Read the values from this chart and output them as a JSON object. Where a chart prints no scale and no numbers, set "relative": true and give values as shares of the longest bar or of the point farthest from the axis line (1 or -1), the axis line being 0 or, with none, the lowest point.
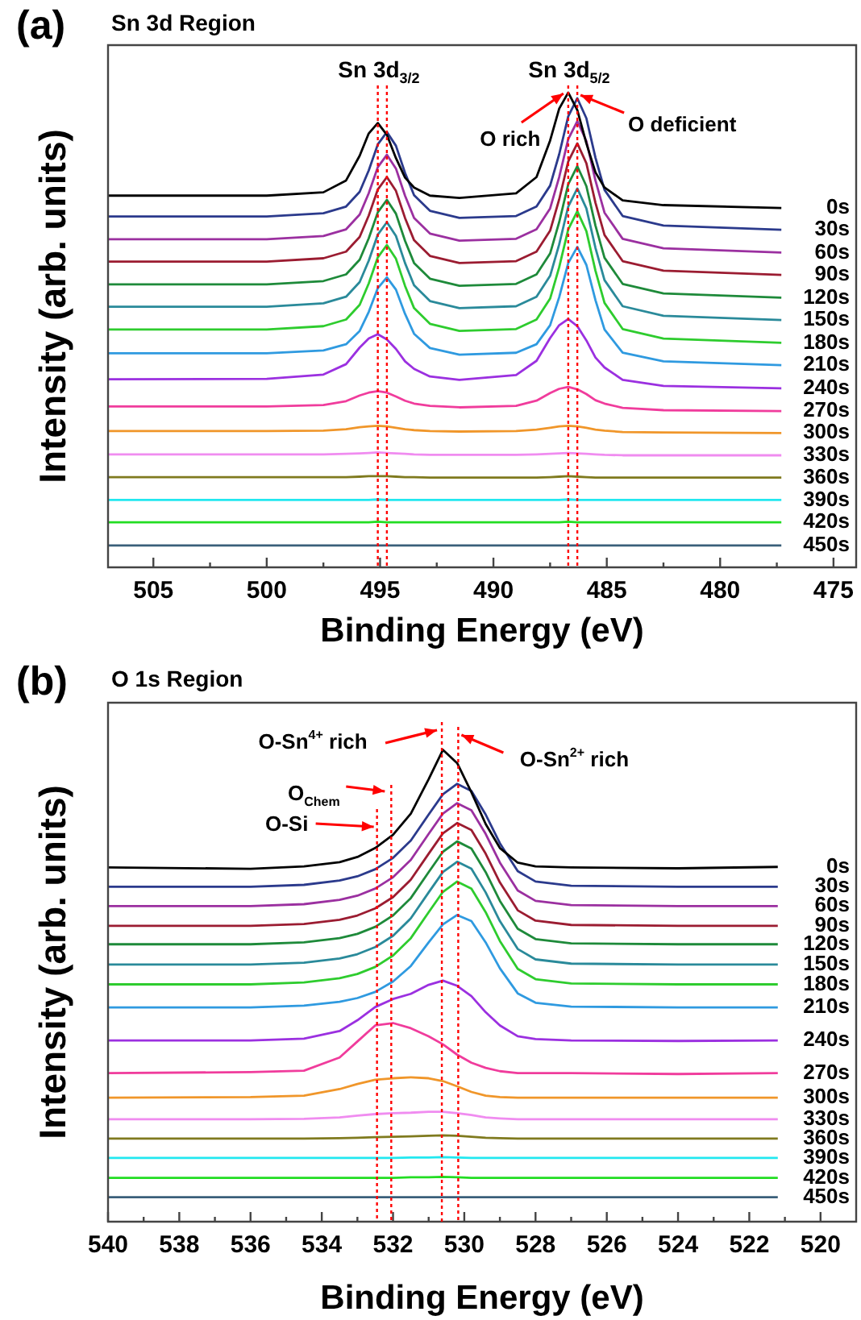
{
  "chart_data": [
    {
      "type": "line",
      "title": "Sn 3d Region",
      "xlabel": "Binding Energy (eV)",
      "ylabel": "Intensity (arb. units)",
      "relative": true,
      "legend": false,
      "grid": false,
      "annotations": [
        "(a)",
        "Sn 3d$_{3/2}$",
        "Sn 3d$_{5/2}$"
      ],
      "xlim": [
        507,
        474
      ],
      "xticks": [
        505,
        {
          "value": 502.5,
          "label": null
        },
        500,
        {
          "value": 497.5,
          "label": null
        },
        495,
        {
          "value": 492.5,
          "label": null
        },
        490,
        {
          "value": 487.5,
          "label": null
        },
        485,
        {
          "value": 482.5,
          "label": null
        },
        480,
        {
          "value": 477.5,
          "label": null
        },
        475
      ],
      "ref_lines": [
        {
          "axis": "x",
          "value": 495.1,
          "color": "#ff0000",
          "line_style": "dotted"
        },
        {
          "axis": "x",
          "value": 494.7,
          "color": "#ff0000",
          "line_style": "dotted"
        },
        {
          "axis": "x",
          "value": 486.7,
          "label": "O rich",
          "color": "#ff0000",
          "line_style": "dotted"
        },
        {
          "axis": "x",
          "value": 486.3,
          "label": "O deficient",
          "color": "#ff0000",
          "line_style": "dotted"
        }
      ],
      "x": [
        507,
        500,
        497.5,
        496.5,
        495.9,
        495.5,
        495.1,
        494.7,
        494.3,
        493.9,
        493.5,
        492.8,
        491.5,
        489,
        488.1,
        487.5,
        487.1,
        486.7,
        486.3,
        485.9,
        485.5,
        485.1,
        484.3,
        482.5,
        477.3
      ],
      "series": [
        {
          "name": "0s",
          "color": "#000000",
          "values": [
            0.783,
            0.783,
            0.79,
            0.815,
            0.867,
            0.914,
            0.936,
            0.911,
            0.862,
            0.821,
            0.8,
            0.783,
            0.778,
            0.788,
            0.822,
            0.899,
            0.966,
            1.0,
            0.963,
            0.893,
            0.832,
            0.8,
            0.773,
            0.763,
            0.757
          ]
        },
        {
          "name": "30s",
          "color": "#2b3a8c",
          "values": [
            0.739,
            0.739,
            0.746,
            0.76,
            0.791,
            0.836,
            0.891,
            0.917,
            0.888,
            0.831,
            0.784,
            0.751,
            0.736,
            0.74,
            0.76,
            0.804,
            0.87,
            0.95,
            0.988,
            0.946,
            0.863,
            0.795,
            0.74,
            0.72,
            0.711
          ]
        },
        {
          "name": "60s",
          "color": "#9b30a0",
          "values": [
            0.691,
            0.691,
            0.698,
            0.712,
            0.743,
            0.788,
            0.843,
            0.869,
            0.84,
            0.783,
            0.736,
            0.703,
            0.688,
            0.692,
            0.712,
            0.756,
            0.822,
            0.902,
            0.94,
            0.898,
            0.815,
            0.747,
            0.692,
            0.672,
            0.663
          ]
        },
        {
          "name": "90s",
          "color": "#9b1c31",
          "values": [
            0.644,
            0.644,
            0.651,
            0.665,
            0.696,
            0.741,
            0.796,
            0.822,
            0.793,
            0.736,
            0.689,
            0.656,
            0.641,
            0.645,
            0.665,
            0.709,
            0.775,
            0.855,
            0.893,
            0.851,
            0.768,
            0.7,
            0.645,
            0.625,
            0.616
          ]
        },
        {
          "name": "120s",
          "color": "#1e8a3a",
          "values": [
            0.596,
            0.596,
            0.603,
            0.617,
            0.648,
            0.693,
            0.748,
            0.774,
            0.745,
            0.688,
            0.641,
            0.608,
            0.593,
            0.597,
            0.617,
            0.661,
            0.727,
            0.807,
            0.845,
            0.803,
            0.72,
            0.652,
            0.597,
            0.577,
            0.568
          ]
        },
        {
          "name": "150s",
          "color": "#2a8a9a",
          "values": [
            0.549,
            0.549,
            0.556,
            0.57,
            0.601,
            0.646,
            0.701,
            0.727,
            0.698,
            0.641,
            0.594,
            0.561,
            0.546,
            0.55,
            0.57,
            0.614,
            0.68,
            0.76,
            0.798,
            0.756,
            0.673,
            0.605,
            0.55,
            0.53,
            0.521
          ]
        },
        {
          "name": "180s",
          "color": "#2ecc2e",
          "values": [
            0.501,
            0.501,
            0.508,
            0.522,
            0.553,
            0.598,
            0.653,
            0.679,
            0.65,
            0.593,
            0.546,
            0.513,
            0.498,
            0.502,
            0.522,
            0.566,
            0.632,
            0.712,
            0.75,
            0.708,
            0.625,
            0.557,
            0.502,
            0.482,
            0.473
          ]
        },
        {
          "name": "210s",
          "color": "#2f9ae0",
          "values": [
            0.451,
            0.451,
            0.457,
            0.47,
            0.498,
            0.538,
            0.588,
            0.611,
            0.585,
            0.534,
            0.492,
            0.462,
            0.448,
            0.452,
            0.47,
            0.51,
            0.569,
            0.641,
            0.675,
            0.637,
            0.563,
            0.501,
            0.452,
            0.434,
            0.426
          ]
        },
        {
          "name": "240s",
          "color": "#9b30e0",
          "values": [
            0.396,
            0.397,
            0.406,
            0.428,
            0.463,
            0.482,
            0.491,
            0.48,
            0.46,
            0.434,
            0.418,
            0.402,
            0.395,
            0.405,
            0.435,
            0.483,
            0.51,
            0.523,
            0.508,
            0.478,
            0.442,
            0.421,
            0.395,
            0.382,
            0.377
          ]
        },
        {
          "name": "270s",
          "color": "#f03c9c",
          "values": [
            0.339,
            0.339,
            0.342,
            0.35,
            0.362,
            0.368,
            0.371,
            0.368,
            0.36,
            0.351,
            0.345,
            0.34,
            0.337,
            0.34,
            0.351,
            0.367,
            0.376,
            0.38,
            0.375,
            0.365,
            0.352,
            0.345,
            0.336,
            0.331,
            0.329
          ]
        },
        {
          "name": "300s",
          "color": "#f0962a",
          "values": [
            0.287,
            0.287,
            0.288,
            0.291,
            0.295,
            0.297,
            0.298,
            0.297,
            0.294,
            0.291,
            0.289,
            0.287,
            0.286,
            0.287,
            0.29,
            0.294,
            0.297,
            0.298,
            0.297,
            0.294,
            0.29,
            0.288,
            0.285,
            0.284,
            0.283
          ]
        },
        {
          "name": "330s",
          "color": "#f08cf0",
          "values": [
            0.238,
            0.238,
            0.238,
            0.239,
            0.24,
            0.241,
            0.242,
            0.241,
            0.24,
            0.239,
            0.238,
            0.237,
            0.237,
            0.237,
            0.238,
            0.239,
            0.24,
            0.241,
            0.24,
            0.239,
            0.238,
            0.237,
            0.236,
            0.236,
            0.236
          ]
        },
        {
          "name": "360s",
          "color": "#7f7a1e",
          "values": [
            0.19,
            0.19,
            0.19,
            0.19,
            0.191,
            0.192,
            0.192,
            0.192,
            0.191,
            0.19,
            0.19,
            0.189,
            0.189,
            0.189,
            0.189,
            0.19,
            0.191,
            0.192,
            0.191,
            0.19,
            0.189,
            0.189,
            0.189,
            0.189,
            0.189
          ]
        },
        {
          "name": "390s",
          "color": "#22e8f0",
          "values": [
            0.142,
            0.142,
            0.142,
            0.142,
            0.142,
            0.142,
            0.143,
            0.142,
            0.142,
            0.142,
            0.142,
            0.142,
            0.142,
            0.142,
            0.142,
            0.142,
            0.142,
            0.143,
            0.142,
            0.142,
            0.142,
            0.142,
            0.142,
            0.142,
            0.142
          ]
        },
        {
          "name": "420s",
          "color": "#22dd22",
          "values": [
            0.095,
            0.095,
            0.095,
            0.095,
            0.095,
            0.095,
            0.096,
            0.095,
            0.095,
            0.095,
            0.095,
            0.095,
            0.095,
            0.095,
            0.095,
            0.095,
            0.095,
            0.096,
            0.095,
            0.095,
            0.095,
            0.095,
            0.095,
            0.095,
            0.095
          ]
        },
        {
          "name": "450s",
          "color": "#3a5f7a",
          "values": [
            0.046,
            0.046,
            0.046,
            0.046,
            0.046,
            0.046,
            0.046,
            0.046,
            0.046,
            0.046,
            0.046,
            0.046,
            0.046,
            0.046,
            0.046,
            0.046,
            0.046,
            0.046,
            0.046,
            0.046,
            0.046,
            0.046,
            0.046,
            0.046,
            0.046
          ]
        }
      ]
    },
    {
      "type": "line",
      "title": "O 1s Region",
      "xlabel": "Binding Energy (eV)",
      "ylabel": "Intensity (arb. units)",
      "relative": true,
      "legend": false,
      "grid": false,
      "annotations": [
        "(b)"
      ],
      "xlim": [
        540,
        519
      ],
      "xticks": [
        540,
        {
          "value": 539,
          "label": null
        },
        538,
        {
          "value": 537,
          "label": null
        },
        536,
        {
          "value": 535,
          "label": null
        },
        534,
        {
          "value": 533,
          "label": null
        },
        532,
        {
          "value": 531,
          "label": null
        },
        530,
        {
          "value": 529,
          "label": null
        },
        528,
        {
          "value": 527,
          "label": null
        },
        526,
        {
          "value": 525,
          "label": null
        },
        524,
        {
          "value": 523,
          "label": null
        },
        522,
        {
          "value": 521,
          "label": null
        },
        520
      ],
      "ref_lines": [
        {
          "axis": "x",
          "value": 532.45,
          "label": "O-Si",
          "color": "#ff0000",
          "line_style": "dotted"
        },
        {
          "axis": "x",
          "value": 532.05,
          "label": "O$_{Chem}$",
          "color": "#ff0000",
          "line_style": "dotted"
        },
        {
          "axis": "x",
          "value": 530.63,
          "label": "O-Sn$^{4+}$ rich",
          "color": "#ff0000",
          "line_style": "dotted"
        },
        {
          "axis": "x",
          "value": 530.17,
          "label": "O-Sn$^{2+}$ rich",
          "color": "#ff0000",
          "line_style": "dotted"
        }
      ],
      "x": [
        540,
        536,
        534.5,
        533.5,
        533,
        532.5,
        532,
        531.5,
        531,
        530.6,
        530.2,
        529.8,
        529.4,
        529,
        528.5,
        528,
        527,
        524,
        521.2
      ],
      "series": [
        {
          "name": "0s",
          "color": "#000000",
          "values": [
            0.751,
            0.748,
            0.753,
            0.762,
            0.773,
            0.792,
            0.82,
            0.865,
            0.938,
            1.0,
            0.972,
            0.91,
            0.843,
            0.792,
            0.761,
            0.753,
            0.751,
            0.749,
            0.752
          ]
        },
        {
          "name": "30s",
          "color": "#2b3a8c",
          "values": [
            0.71,
            0.71,
            0.714,
            0.723,
            0.732,
            0.747,
            0.771,
            0.808,
            0.863,
            0.906,
            0.928,
            0.913,
            0.863,
            0.802,
            0.743,
            0.721,
            0.712,
            0.71,
            0.71
          ]
        },
        {
          "name": "60s",
          "color": "#9b30a0",
          "values": [
            0.669,
            0.669,
            0.673,
            0.682,
            0.691,
            0.706,
            0.73,
            0.767,
            0.822,
            0.865,
            0.887,
            0.872,
            0.822,
            0.761,
            0.702,
            0.68,
            0.671,
            0.669,
            0.669
          ]
        },
        {
          "name": "90s",
          "color": "#9b1c31",
          "values": [
            0.627,
            0.627,
            0.631,
            0.64,
            0.649,
            0.664,
            0.688,
            0.725,
            0.78,
            0.823,
            0.845,
            0.83,
            0.78,
            0.719,
            0.66,
            0.638,
            0.629,
            0.627,
            0.627
          ]
        },
        {
          "name": "120s",
          "color": "#1e8a3a",
          "values": [
            0.588,
            0.588,
            0.592,
            0.601,
            0.61,
            0.625,
            0.649,
            0.686,
            0.741,
            0.784,
            0.806,
            0.791,
            0.741,
            0.68,
            0.621,
            0.599,
            0.59,
            0.588,
            0.588
          ]
        },
        {
          "name": "150s",
          "color": "#2a8a9a",
          "values": [
            0.545,
            0.545,
            0.549,
            0.558,
            0.567,
            0.582,
            0.606,
            0.643,
            0.698,
            0.741,
            0.763,
            0.748,
            0.698,
            0.637,
            0.578,
            0.556,
            0.547,
            0.545,
            0.545
          ]
        },
        {
          "name": "180s",
          "color": "#2ecc2e",
          "values": [
            0.503,
            0.503,
            0.507,
            0.516,
            0.525,
            0.54,
            0.564,
            0.601,
            0.656,
            0.699,
            0.721,
            0.706,
            0.656,
            0.595,
            0.536,
            0.514,
            0.505,
            0.503,
            0.503
          ]
        },
        {
          "name": "210s",
          "color": "#2f9ae0",
          "values": [
            0.454,
            0.454,
            0.458,
            0.466,
            0.474,
            0.487,
            0.509,
            0.542,
            0.592,
            0.63,
            0.65,
            0.637,
            0.592,
            0.537,
            0.484,
            0.464,
            0.456,
            0.454,
            0.454
          ]
        },
        {
          "name": "240s",
          "color": "#9b30e0",
          "values": [
            0.384,
            0.384,
            0.388,
            0.404,
            0.427,
            0.455,
            0.472,
            0.483,
            0.502,
            0.511,
            0.5,
            0.478,
            0.444,
            0.416,
            0.393,
            0.387,
            0.384,
            0.383,
            0.384
          ]
        },
        {
          "name": "270s",
          "color": "#f03c9c",
          "values": [
            0.315,
            0.317,
            0.32,
            0.348,
            0.382,
            0.416,
            0.421,
            0.41,
            0.393,
            0.376,
            0.354,
            0.337,
            0.326,
            0.319,
            0.315,
            0.315,
            0.315,
            0.313,
            0.315
          ]
        },
        {
          "name": "300s",
          "color": "#f0962a",
          "values": [
            0.263,
            0.264,
            0.267,
            0.281,
            0.292,
            0.301,
            0.304,
            0.306,
            0.304,
            0.298,
            0.287,
            0.275,
            0.267,
            0.264,
            0.263,
            0.263,
            0.263,
            0.263,
            0.263
          ]
        },
        {
          "name": "330s",
          "color": "#f08cf0",
          "values": [
            0.217,
            0.217,
            0.218,
            0.221,
            0.225,
            0.228,
            0.23,
            0.231,
            0.233,
            0.233,
            0.23,
            0.226,
            0.221,
            0.219,
            0.217,
            0.217,
            0.217,
            0.217,
            0.217
          ]
        },
        {
          "name": "360s",
          "color": "#7f7a1e",
          "values": [
            0.176,
            0.176,
            0.176,
            0.177,
            0.178,
            0.179,
            0.18,
            0.181,
            0.182,
            0.183,
            0.182,
            0.18,
            0.178,
            0.177,
            0.176,
            0.176,
            0.176,
            0.176,
            0.176
          ]
        },
        {
          "name": "390s",
          "color": "#22e8f0",
          "values": [
            0.135,
            0.135,
            0.135,
            0.135,
            0.135,
            0.135,
            0.135,
            0.136,
            0.136,
            0.137,
            0.136,
            0.135,
            0.135,
            0.135,
            0.135,
            0.135,
            0.135,
            0.135,
            0.135
          ]
        },
        {
          "name": "420s",
          "color": "#22dd22",
          "values": [
            0.093,
            0.093,
            0.093,
            0.093,
            0.093,
            0.093,
            0.093,
            0.094,
            0.094,
            0.095,
            0.094,
            0.093,
            0.093,
            0.093,
            0.093,
            0.093,
            0.093,
            0.093,
            0.093
          ]
        },
        {
          "name": "450s",
          "color": "#3a5f7a",
          "values": [
            0.052,
            0.052,
            0.052,
            0.052,
            0.052,
            0.052,
            0.052,
            0.052,
            0.052,
            0.052,
            0.052,
            0.052,
            0.052,
            0.052,
            0.052,
            0.052,
            0.052,
            0.052,
            0.052
          ]
        }
      ]
    }
  ]
}
